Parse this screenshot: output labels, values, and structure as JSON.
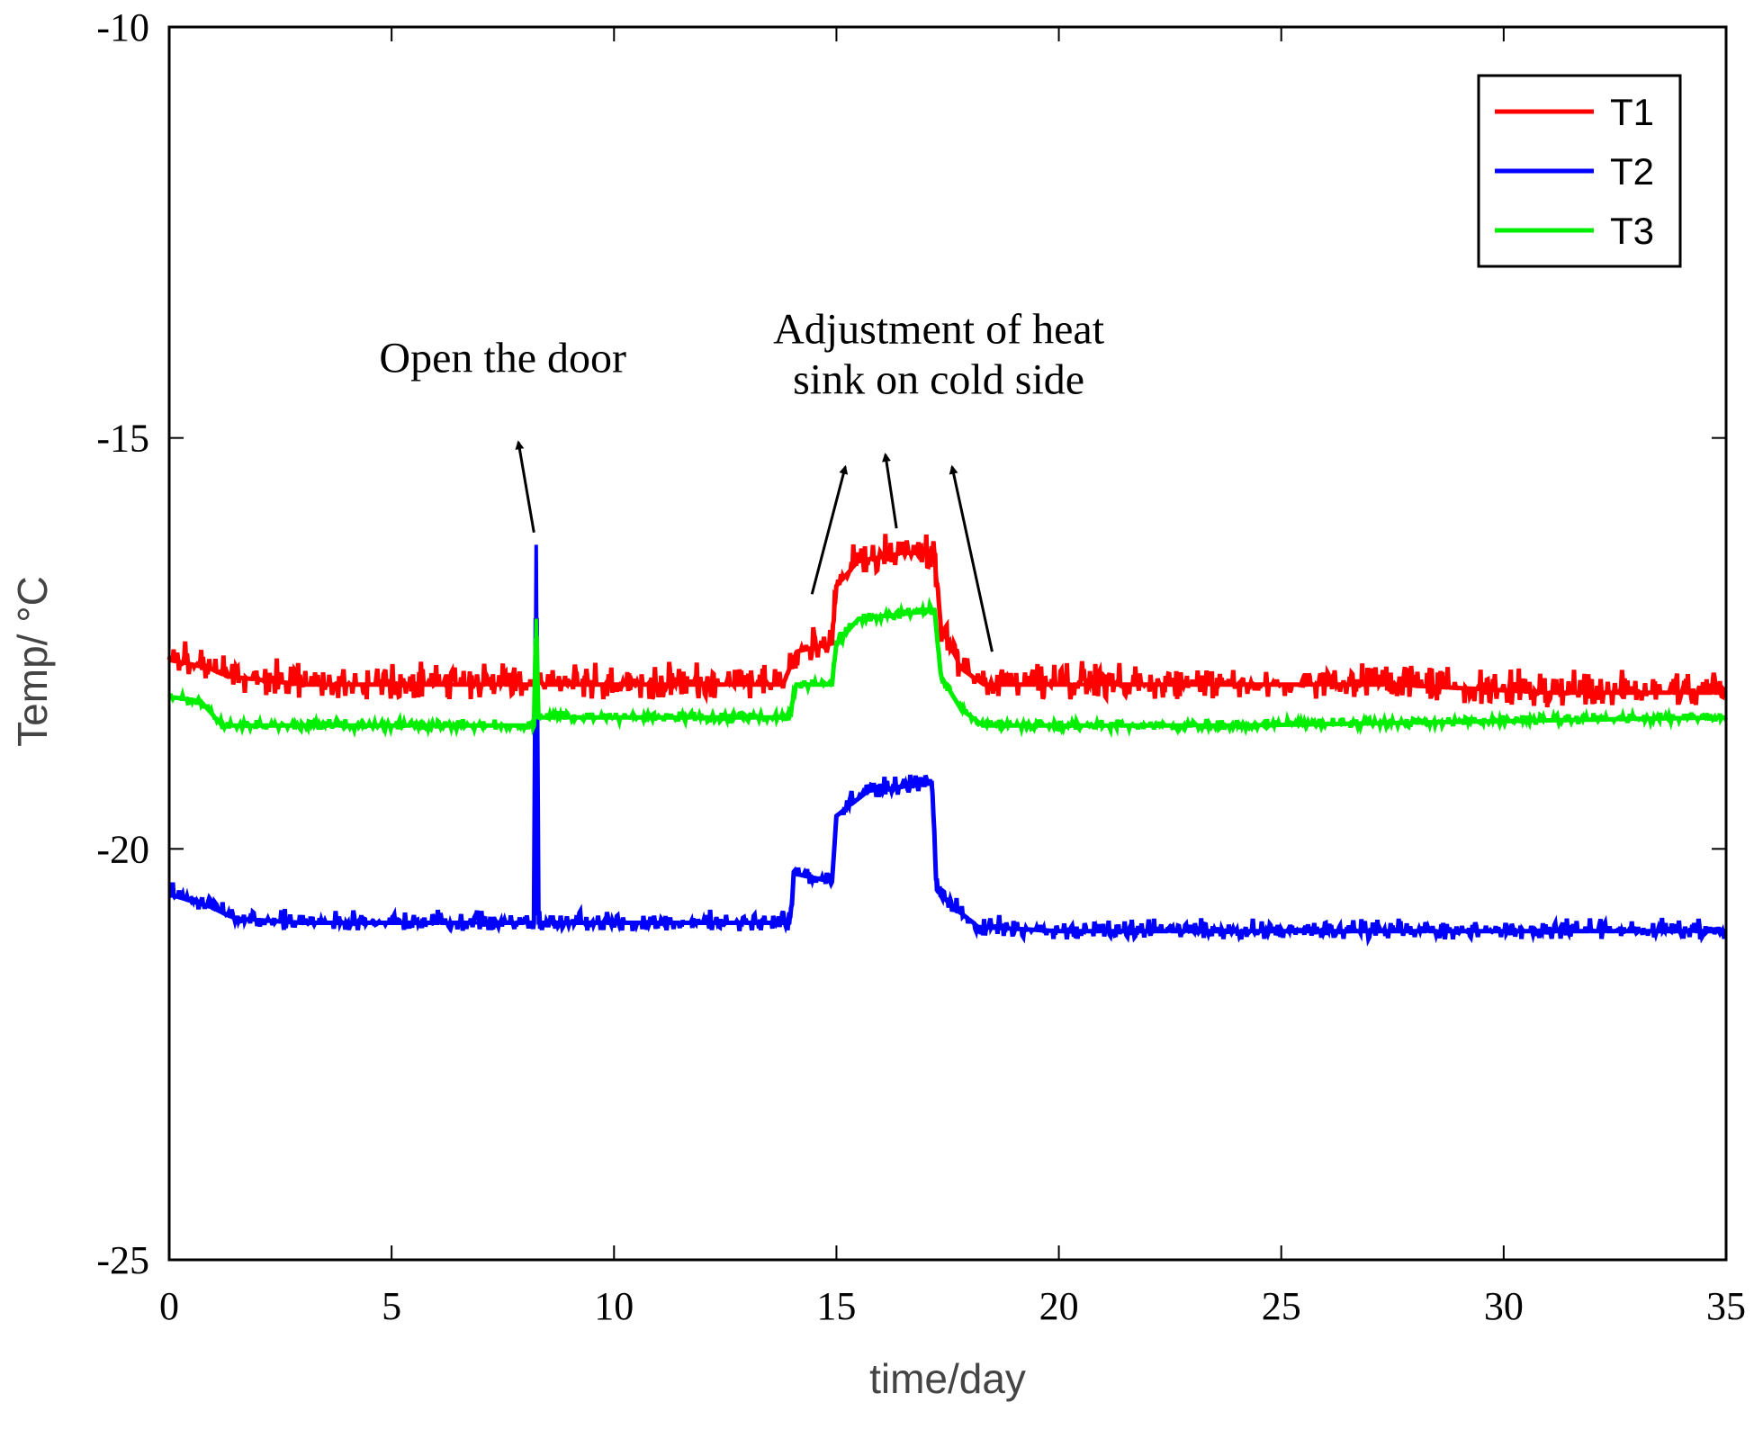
{
  "chart_data": {
    "type": "line",
    "title": "",
    "xlabel": "time/day",
    "ylabel": "Temp/ °C",
    "xlim": [
      0,
      35
    ],
    "ylim": [
      -25,
      -10
    ],
    "xticks": [
      0,
      5,
      10,
      15,
      20,
      25,
      30,
      35
    ],
    "yticks": [
      -25,
      -20,
      -15,
      -10
    ],
    "xtick_labels": [
      "0",
      "5",
      "10",
      "15",
      "20",
      "25",
      "30",
      "35"
    ],
    "ytick_labels": [
      "-25",
      "-20",
      "-15",
      "-10"
    ],
    "grid": false,
    "legend_position": "top-right",
    "series": [
      {
        "name": "T1",
        "color": "#ff0000",
        "noise": 0.18,
        "points": [
          [
            0,
            -17.7
          ],
          [
            0.9,
            -17.8
          ],
          [
            1.3,
            -17.9
          ],
          [
            3,
            -18.0
          ],
          [
            8,
            -18.0
          ],
          [
            8.25,
            -18.0
          ],
          [
            8.3,
            -17.9
          ],
          [
            8.4,
            -18.0
          ],
          [
            13.8,
            -18.0
          ],
          [
            14.1,
            -17.6
          ],
          [
            14.9,
            -17.5
          ],
          [
            15.0,
            -16.8
          ],
          [
            15.5,
            -16.5
          ],
          [
            16.5,
            -16.4
          ],
          [
            17.2,
            -16.4
          ],
          [
            17.35,
            -17.3
          ],
          [
            17.8,
            -17.8
          ],
          [
            18.3,
            -18.0
          ],
          [
            19,
            -18.0
          ],
          [
            24,
            -18.0
          ],
          [
            27.5,
            -18.0
          ],
          [
            31,
            -18.1
          ],
          [
            35,
            -18.1
          ]
        ]
      },
      {
        "name": "T2",
        "color": "#0000ff",
        "noise": 0.1,
        "points": [
          [
            0,
            -20.55
          ],
          [
            0.9,
            -20.7
          ],
          [
            1.5,
            -20.85
          ],
          [
            3,
            -20.9
          ],
          [
            8.1,
            -20.9
          ],
          [
            8.2,
            -20.9
          ],
          [
            8.25,
            -16.3
          ],
          [
            8.3,
            -20.9
          ],
          [
            13.95,
            -20.9
          ],
          [
            14.05,
            -20.3
          ],
          [
            14.9,
            -20.4
          ],
          [
            15.0,
            -19.6
          ],
          [
            15.7,
            -19.3
          ],
          [
            17.15,
            -19.2
          ],
          [
            17.25,
            -20.5
          ],
          [
            17.6,
            -20.7
          ],
          [
            18.2,
            -20.95
          ],
          [
            20,
            -21.0
          ],
          [
            35,
            -21.0
          ]
        ]
      },
      {
        "name": "T3",
        "color": "#00ee00",
        "noise": 0.05,
        "points": [
          [
            0,
            -18.15
          ],
          [
            0.7,
            -18.2
          ],
          [
            1.2,
            -18.5
          ],
          [
            3,
            -18.5
          ],
          [
            8.15,
            -18.5
          ],
          [
            8.2,
            -18.5
          ],
          [
            8.25,
            -17.2
          ],
          [
            8.3,
            -18.4
          ],
          [
            13.95,
            -18.4
          ],
          [
            14.1,
            -18.0
          ],
          [
            14.9,
            -18.0
          ],
          [
            15.0,
            -17.5
          ],
          [
            15.5,
            -17.2
          ],
          [
            17.2,
            -17.1
          ],
          [
            17.35,
            -17.9
          ],
          [
            17.8,
            -18.3
          ],
          [
            18.3,
            -18.5
          ],
          [
            24,
            -18.5
          ],
          [
            35,
            -18.4
          ]
        ]
      }
    ],
    "annotations": [
      {
        "lines": [
          "Open the door"
        ],
        "x": 7.5,
        "y": -14.2,
        "arrows": [
          [
            [
              8.2,
              -16.15
            ],
            [
              7.85,
              -15.05
            ]
          ]
        ]
      },
      {
        "lines": [
          "Adjustment of heat",
          "sink on cold side"
        ],
        "x": 17.3,
        "y": -13.85,
        "arrows": [
          [
            [
              14.45,
              -16.9
            ],
            [
              15.2,
              -15.35
            ]
          ],
          [
            [
              16.35,
              -16.1
            ],
            [
              16.1,
              -15.2
            ]
          ],
          [
            [
              18.5,
              -17.6
            ],
            [
              17.6,
              -15.35
            ]
          ]
        ]
      }
    ]
  }
}
